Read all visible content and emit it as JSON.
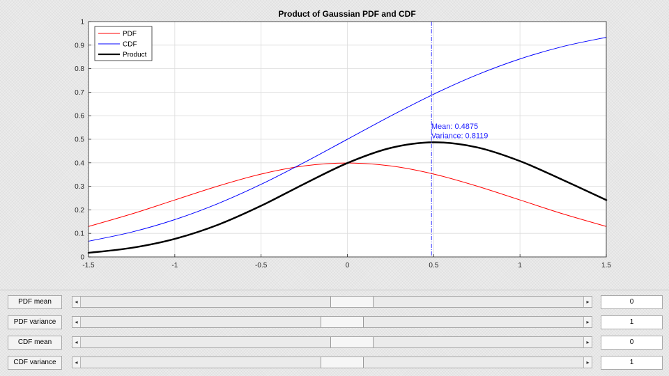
{
  "chart_data": {
    "type": "line",
    "title": "Product of Gaussian PDF and CDF",
    "xlim": [
      -1.5,
      1.5
    ],
    "ylim": [
      0,
      1
    ],
    "x_ticks": [
      "-1.5",
      "-1",
      "-0.5",
      "0",
      "0.5",
      "1",
      "1.5"
    ],
    "y_ticks": [
      "0",
      "0.1",
      "0.2",
      "0.3",
      "0.4",
      "0.5",
      "0.6",
      "0.7",
      "0.8",
      "0.9",
      "1"
    ],
    "grid": true,
    "legend_position": "top-left",
    "x": [
      -1.5,
      -1.25,
      -1.0,
      -0.75,
      -0.5,
      -0.25,
      0.0,
      0.25,
      0.5,
      0.75,
      1.0,
      1.25,
      1.5
    ],
    "series": [
      {
        "name": "PDF",
        "color": "#ff0000",
        "width": 1,
        "values": [
          0.1295,
          0.1826,
          0.242,
          0.3011,
          0.3521,
          0.3867,
          0.3989,
          0.3867,
          0.3521,
          0.3011,
          0.242,
          0.1826,
          0.1295
        ]
      },
      {
        "name": "CDF",
        "color": "#0000ff",
        "width": 1,
        "values": [
          0.0668,
          0.1056,
          0.1587,
          0.2266,
          0.3085,
          0.4013,
          0.5,
          0.5987,
          0.6915,
          0.7734,
          0.8413,
          0.8944,
          0.9332
        ]
      },
      {
        "name": "Product",
        "color": "#000000",
        "width": 2.5,
        "values": [
          0.0173,
          0.0386,
          0.0768,
          0.1365,
          0.2173,
          0.3104,
          0.3989,
          0.463,
          0.487,
          0.4658,
          0.4072,
          0.3266,
          0.2417
        ]
      }
    ],
    "marker": {
      "x": 0.4875,
      "color": "#1a1aff",
      "style": "dash-dot"
    },
    "annotations": [
      {
        "text": "Mean: 0.4875",
        "x": 0.49,
        "y": 0.545
      },
      {
        "text": "Variance: 0.8119",
        "x": 0.49,
        "y": 0.505
      }
    ]
  },
  "controls": [
    {
      "label": "PDF mean",
      "value": "0",
      "position": 0.54
    },
    {
      "label": "PDF variance",
      "value": "1",
      "position": 0.52
    },
    {
      "label": "CDF mean",
      "value": "0",
      "position": 0.54
    },
    {
      "label": "CDF variance",
      "value": "1",
      "position": 0.52
    }
  ],
  "icons": {
    "left_arrow": "◂",
    "right_arrow": "▸"
  }
}
